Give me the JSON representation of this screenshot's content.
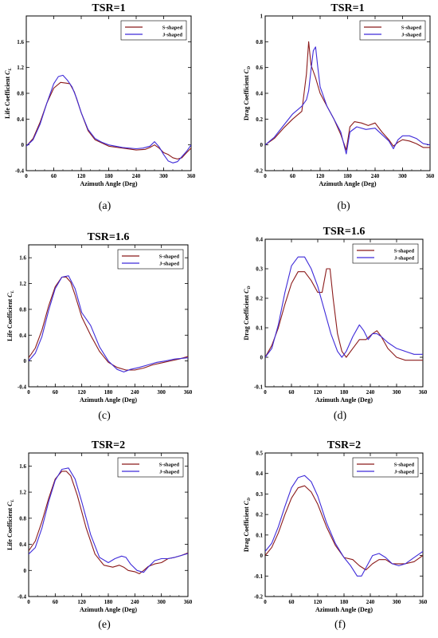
{
  "figure": {
    "line_colors": {
      "S-shaped": "#8B1A1A",
      "J-shaped": "#3F2BD9"
    }
  },
  "chart_data": [
    {
      "type": "line",
      "caption": "(a)",
      "title": "TSR=1",
      "xlabel": "Azimuth Angle (Deg)",
      "ylabel": "Life Coefficient C_L",
      "xlim": [
        0,
        360
      ],
      "ylim": [
        -0.4,
        2.0
      ],
      "xticks": [
        "0",
        "60",
        "120",
        "180",
        "240",
        "300",
        "360"
      ],
      "yticks": [
        "-0.4",
        "0",
        "0.4",
        "0.8",
        "1.2",
        "1.6"
      ],
      "legend": "top-right",
      "series": [
        {
          "name": "S-shaped",
          "x": [
            0,
            15,
            30,
            45,
            60,
            75,
            85,
            95,
            105,
            120,
            135,
            150,
            165,
            180,
            210,
            240,
            260,
            270,
            280,
            290,
            300,
            310,
            320,
            330,
            340,
            350,
            360
          ],
          "values": [
            -0.02,
            0.1,
            0.35,
            0.65,
            0.88,
            0.97,
            0.96,
            0.95,
            0.82,
            0.5,
            0.22,
            0.08,
            0.03,
            -0.02,
            -0.05,
            -0.08,
            -0.07,
            -0.04,
            0.0,
            -0.05,
            -0.12,
            -0.15,
            -0.2,
            -0.22,
            -0.2,
            -0.12,
            -0.05
          ]
        },
        {
          "name": "J-shaped",
          "x": [
            0,
            15,
            30,
            45,
            60,
            70,
            80,
            90,
            100,
            110,
            120,
            135,
            150,
            165,
            180,
            210,
            240,
            255,
            270,
            280,
            290,
            300,
            310,
            320,
            330,
            340,
            350,
            360
          ],
          "values": [
            -0.02,
            0.08,
            0.32,
            0.65,
            0.95,
            1.06,
            1.08,
            1.0,
            0.9,
            0.72,
            0.5,
            0.24,
            0.1,
            0.04,
            0.0,
            -0.04,
            -0.06,
            -0.05,
            -0.02,
            0.05,
            -0.03,
            -0.15,
            -0.25,
            -0.28,
            -0.26,
            -0.18,
            -0.1,
            0.0
          ]
        }
      ]
    },
    {
      "type": "line",
      "caption": "(b)",
      "title": "TSR=1",
      "xlabel": "Azimuth Angle (Deg)",
      "ylabel": "Drag Coefficient C_D",
      "xlim": [
        0,
        360
      ],
      "ylim": [
        -0.2,
        1.0
      ],
      "xticks": [
        "0",
        "60",
        "120",
        "180",
        "240",
        "300",
        "360"
      ],
      "yticks": [
        "-0.2",
        "0",
        "0.2",
        "0.4",
        "0.6",
        "0.8",
        "1"
      ],
      "legend": "top-right",
      "series": [
        {
          "name": "S-shaped",
          "x": [
            0,
            20,
            40,
            60,
            80,
            90,
            95,
            100,
            105,
            110,
            120,
            135,
            150,
            165,
            177,
            185,
            195,
            210,
            225,
            240,
            255,
            270,
            280,
            290,
            300,
            315,
            330,
            345,
            360
          ],
          "values": [
            0.0,
            0.05,
            0.13,
            0.2,
            0.26,
            0.55,
            0.8,
            0.62,
            0.57,
            0.52,
            0.4,
            0.3,
            0.2,
            0.08,
            -0.04,
            0.14,
            0.18,
            0.17,
            0.15,
            0.17,
            0.1,
            0.04,
            -0.01,
            0.02,
            0.04,
            0.03,
            0.01,
            -0.02,
            -0.02
          ]
        },
        {
          "name": "J-shaped",
          "x": [
            0,
            20,
            40,
            60,
            80,
            90,
            95,
            100,
            105,
            110,
            115,
            120,
            135,
            150,
            165,
            177,
            185,
            200,
            220,
            240,
            255,
            270,
            280,
            290,
            300,
            315,
            330,
            345,
            360
          ],
          "values": [
            0.0,
            0.06,
            0.15,
            0.24,
            0.3,
            0.35,
            0.42,
            0.58,
            0.73,
            0.76,
            0.6,
            0.45,
            0.3,
            0.2,
            0.1,
            -0.07,
            0.1,
            0.14,
            0.12,
            0.13,
            0.08,
            0.03,
            -0.03,
            0.04,
            0.07,
            0.07,
            0.05,
            0.01,
            0.0
          ]
        }
      ]
    },
    {
      "type": "line",
      "caption": "(c)",
      "title": "TSR=1.6",
      "xlabel": "Azimuth Angle (Deg)",
      "ylabel": "Life Coefficient C_L",
      "xlim": [
        0,
        360
      ],
      "ylim": [
        -0.4,
        1.8
      ],
      "xticks": [
        "0",
        "60",
        "120",
        "180",
        "240",
        "300",
        "360"
      ],
      "yticks": [
        "-0.4",
        "0",
        "0.4",
        "0.8",
        "1.2",
        "1.6"
      ],
      "legend": "top-right",
      "series": [
        {
          "name": "S-shaped",
          "x": [
            0,
            15,
            30,
            45,
            60,
            75,
            85,
            95,
            105,
            120,
            140,
            160,
            180,
            200,
            220,
            240,
            260,
            280,
            300,
            320,
            340,
            360
          ],
          "values": [
            0.05,
            0.2,
            0.48,
            0.85,
            1.15,
            1.3,
            1.3,
            1.22,
            1.02,
            0.68,
            0.4,
            0.15,
            -0.02,
            -0.1,
            -0.14,
            -0.14,
            -0.11,
            -0.06,
            -0.03,
            0.0,
            0.03,
            0.07
          ]
        },
        {
          "name": "J-shaped",
          "x": [
            0,
            15,
            30,
            45,
            60,
            75,
            90,
            105,
            120,
            140,
            160,
            180,
            200,
            215,
            230,
            250,
            270,
            290,
            310,
            330,
            345,
            360
          ],
          "values": [
            0.0,
            0.12,
            0.38,
            0.78,
            1.12,
            1.3,
            1.32,
            1.12,
            0.75,
            0.55,
            0.22,
            0.0,
            -0.13,
            -0.17,
            -0.13,
            -0.1,
            -0.06,
            -0.02,
            0.0,
            0.03,
            0.04,
            0.05
          ]
        }
      ]
    },
    {
      "type": "line",
      "caption": "(d)",
      "title": "TSR=1.6",
      "xlabel": "Azimuth Angle (Deg)",
      "ylabel": "Drag Coefficient C_D",
      "xlim": [
        0,
        360
      ],
      "ylim": [
        -0.1,
        0.4
      ],
      "xticks": [
        "0",
        "60",
        "120",
        "180",
        "240",
        "300",
        "360"
      ],
      "yticks": [
        "-0.1",
        "0",
        "0.1",
        "0.2",
        "0.3",
        "0.4"
      ],
      "legend": "top-right",
      "series": [
        {
          "name": "S-shaped",
          "x": [
            0,
            15,
            30,
            45,
            60,
            75,
            90,
            105,
            120,
            130,
            140,
            148,
            155,
            165,
            175,
            185,
            200,
            215,
            230,
            245,
            255,
            265,
            280,
            300,
            320,
            340,
            360
          ],
          "values": [
            0.0,
            0.04,
            0.1,
            0.18,
            0.25,
            0.29,
            0.29,
            0.26,
            0.22,
            0.22,
            0.3,
            0.3,
            0.2,
            0.08,
            0.02,
            0.0,
            0.03,
            0.06,
            0.06,
            0.08,
            0.09,
            0.07,
            0.03,
            0.0,
            -0.01,
            -0.01,
            -0.01
          ]
        },
        {
          "name": "J-shaped",
          "x": [
            0,
            15,
            30,
            45,
            60,
            75,
            90,
            105,
            120,
            135,
            150,
            165,
            175,
            185,
            200,
            215,
            225,
            235,
            245,
            255,
            265,
            280,
            300,
            320,
            340,
            360
          ],
          "values": [
            0.0,
            0.03,
            0.11,
            0.22,
            0.31,
            0.34,
            0.34,
            0.3,
            0.24,
            0.16,
            0.08,
            0.02,
            0.0,
            0.02,
            0.07,
            0.11,
            0.09,
            0.06,
            0.08,
            0.08,
            0.07,
            0.05,
            0.03,
            0.02,
            0.01,
            0.01
          ]
        }
      ]
    },
    {
      "type": "line",
      "caption": "(e)",
      "title": "TSR=2",
      "xlabel": "Azimuth Angle (Deg)",
      "ylabel": "Life Coefficient C_L",
      "xlim": [
        0,
        360
      ],
      "ylim": [
        -0.4,
        1.8
      ],
      "xticks": [
        "0",
        "60",
        "120",
        "180",
        "240",
        "300",
        "360"
      ],
      "yticks": [
        "-0.4",
        "0",
        "0.4",
        "0.8",
        "1.2",
        "1.6"
      ],
      "legend": "top-right",
      "series": [
        {
          "name": "S-shaped",
          "x": [
            0,
            15,
            30,
            45,
            60,
            75,
            85,
            95,
            110,
            130,
            150,
            170,
            190,
            205,
            215,
            225,
            240,
            250,
            260,
            270,
            285,
            300,
            315,
            330,
            345,
            360
          ],
          "values": [
            0.3,
            0.45,
            0.75,
            1.1,
            1.4,
            1.52,
            1.52,
            1.45,
            1.15,
            0.65,
            0.25,
            0.08,
            0.05,
            0.08,
            0.05,
            0.0,
            -0.02,
            -0.05,
            0.0,
            0.06,
            0.1,
            0.12,
            0.18,
            0.2,
            0.23,
            0.27
          ]
        },
        {
          "name": "J-shaped",
          "x": [
            0,
            15,
            30,
            45,
            60,
            75,
            90,
            105,
            120,
            140,
            160,
            180,
            195,
            210,
            220,
            230,
            245,
            260,
            270,
            285,
            300,
            315,
            330,
            345,
            360
          ],
          "values": [
            0.25,
            0.35,
            0.65,
            1.05,
            1.38,
            1.55,
            1.57,
            1.4,
            1.05,
            0.55,
            0.2,
            0.12,
            0.18,
            0.22,
            0.2,
            0.1,
            0.0,
            -0.03,
            0.05,
            0.15,
            0.18,
            0.18,
            0.2,
            0.23,
            0.26
          ]
        }
      ]
    },
    {
      "type": "line",
      "caption": "(f)",
      "title": "TSR=2",
      "xlabel": "Azimuth Angle (Deg)",
      "ylabel": "Drag Coefficient C_D",
      "xlim": [
        0,
        360
      ],
      "ylim": [
        -0.2,
        0.5
      ],
      "xticks": [
        "0",
        "60",
        "120",
        "180",
        "240",
        "300",
        "360"
      ],
      "yticks": [
        "-0.2",
        "-0.1",
        "0",
        "0.1",
        "0.2",
        "0.3",
        "0.4",
        "0.5"
      ],
      "legend": "top-right",
      "series": [
        {
          "name": "S-shaped",
          "x": [
            0,
            15,
            30,
            45,
            60,
            75,
            90,
            105,
            120,
            140,
            160,
            180,
            200,
            215,
            230,
            245,
            260,
            275,
            290,
            305,
            320,
            340,
            360
          ],
          "values": [
            0.0,
            0.04,
            0.11,
            0.2,
            0.28,
            0.33,
            0.34,
            0.31,
            0.25,
            0.14,
            0.05,
            -0.01,
            -0.02,
            -0.05,
            -0.07,
            -0.04,
            -0.02,
            -0.02,
            -0.04,
            -0.04,
            -0.04,
            -0.03,
            0.0
          ]
        },
        {
          "name": "J-shaped",
          "x": [
            0,
            15,
            30,
            45,
            60,
            75,
            90,
            105,
            120,
            140,
            160,
            180,
            195,
            210,
            220,
            230,
            245,
            260,
            275,
            290,
            305,
            320,
            340,
            360
          ],
          "values": [
            0.02,
            0.06,
            0.14,
            0.24,
            0.33,
            0.38,
            0.39,
            0.36,
            0.29,
            0.16,
            0.06,
            -0.01,
            -0.05,
            -0.1,
            -0.1,
            -0.06,
            0.0,
            0.01,
            -0.01,
            -0.04,
            -0.05,
            -0.04,
            -0.01,
            0.02
          ]
        }
      ]
    }
  ]
}
